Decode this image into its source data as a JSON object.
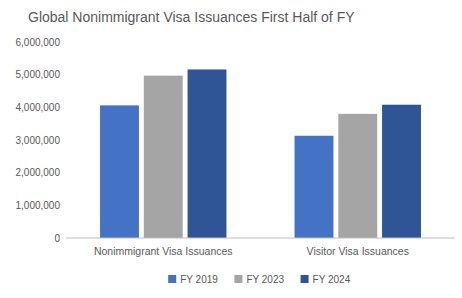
{
  "chart_data": {
    "type": "bar",
    "title": "Global Nonimmigrant Visa Issuances First Half of FY",
    "categories": [
      "Nonimmigrant Visa Issuances",
      "Visitor Visa Issuances"
    ],
    "series": [
      {
        "name": "FY 2019",
        "color": "#4472c4",
        "values": [
          4060000,
          3130000
        ]
      },
      {
        "name": "FY 2023",
        "color": "#a5a5a5",
        "values": [
          4970000,
          3800000
        ]
      },
      {
        "name": "FY 2024",
        "color": "#2f5597",
        "values": [
          5160000,
          4080000
        ]
      }
    ],
    "ylim": [
      0,
      6000000
    ],
    "yticks": [
      0,
      {
        "value": 1000000,
        "label": "1,000,000"
      },
      {
        "value": 2000000,
        "label": "2,000,000"
      },
      {
        "value": 3000000,
        "label": "3,000,000"
      },
      {
        "value": 4000000,
        "label": "4,000,000"
      },
      {
        "value": 5000000,
        "label": "5,000,000"
      },
      {
        "value": 6000000,
        "label": "6,000,000"
      }
    ],
    "grid": false,
    "legend": "bottom"
  }
}
